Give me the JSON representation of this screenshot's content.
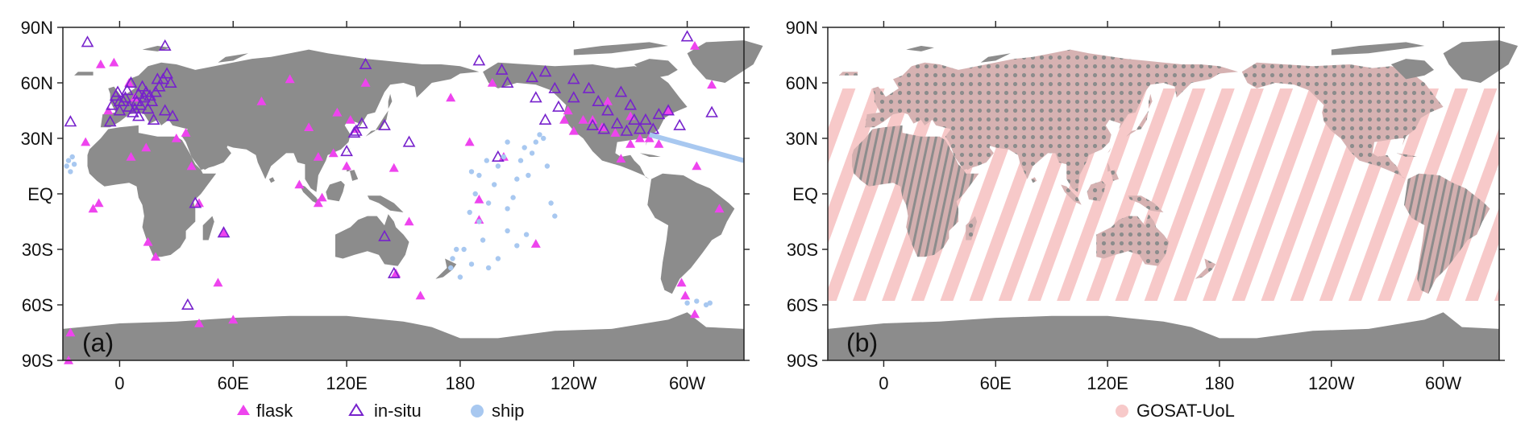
{
  "colors": {
    "land": "#8c8c8c",
    "ocean": "#ffffff",
    "flask": "#ee44ee",
    "insitu": "#7722cc",
    "ship": "#a8c8f0",
    "gosat": "#f7c9c9"
  },
  "axes": {
    "lat_ticks": [
      "90N",
      "60N",
      "30N",
      "EQ",
      "30S",
      "60S",
      "90S"
    ],
    "lon_ticks": [
      "0",
      "60E",
      "120E",
      "180",
      "120W",
      "60W"
    ]
  },
  "panels": [
    {
      "label": "(a)",
      "legend": [
        "flask",
        "in-situ",
        "ship"
      ]
    },
    {
      "label": "(b)",
      "legend": [
        "GOSAT-UoL"
      ]
    }
  ],
  "chart_data": {
    "type": "scatter",
    "lon_range": [
      -30,
      330
    ],
    "lat_range": [
      -90,
      90
    ],
    "series": [
      {
        "name": "flask",
        "marker": "filled-triangle",
        "points": [
          [
            -26,
            -75
          ],
          [
            -27,
            -90
          ],
          [
            -10,
            70
          ],
          [
            -3,
            71
          ],
          [
            -6,
            45
          ],
          [
            5,
            60
          ],
          [
            8,
            52
          ],
          [
            -18,
            28
          ],
          [
            -11,
            -5
          ],
          [
            6,
            20
          ],
          [
            14,
            25
          ],
          [
            -14,
            -8
          ],
          [
            15,
            -26
          ],
          [
            19,
            -34
          ],
          [
            30,
            30
          ],
          [
            35,
            33
          ],
          [
            38,
            15
          ],
          [
            42,
            -5
          ],
          [
            55,
            -21
          ],
          [
            52,
            -48
          ],
          [
            42,
            -70
          ],
          [
            60,
            -68
          ],
          [
            75,
            50
          ],
          [
            90,
            62
          ],
          [
            100,
            36
          ],
          [
            95,
            5
          ],
          [
            105,
            -5
          ],
          [
            107,
            -2
          ],
          [
            105,
            20
          ],
          [
            113,
            22
          ],
          [
            115,
            44
          ],
          [
            120,
            15
          ],
          [
            122,
            40
          ],
          [
            125,
            35
          ],
          [
            130,
            60
          ],
          [
            145,
            14
          ],
          [
            146,
            -43
          ],
          [
            153,
            -15
          ],
          [
            159,
            -55
          ],
          [
            175,
            52
          ],
          [
            185,
            28
          ],
          [
            190,
            -3
          ],
          [
            197,
            60
          ],
          [
            190,
            -14
          ],
          [
            203,
            20
          ],
          [
            220,
            -27
          ],
          [
            235,
            40
          ],
          [
            237,
            45
          ],
          [
            240,
            34
          ],
          [
            245,
            40
          ],
          [
            250,
            40
          ],
          [
            255,
            36
          ],
          [
            258,
            50
          ],
          [
            262,
            33
          ],
          [
            265,
            19
          ],
          [
            270,
            42
          ],
          [
            270,
            27
          ],
          [
            275,
            30
          ],
          [
            280,
            30
          ],
          [
            285,
            27
          ],
          [
            290,
            45
          ],
          [
            297,
            -48
          ],
          [
            299,
            -55
          ],
          [
            304,
            -65
          ],
          [
            305,
            15
          ],
          [
            317,
            -8
          ],
          [
            304,
            80
          ],
          [
            313,
            59
          ]
        ]
      },
      {
        "name": "in-situ",
        "marker": "open-triangle",
        "points": [
          [
            -26,
            39
          ],
          [
            -17,
            82
          ],
          [
            -2,
            53
          ],
          [
            -5,
            39
          ],
          [
            -4,
            48
          ],
          [
            0,
            45
          ],
          [
            2,
            50
          ],
          [
            3,
            52
          ],
          [
            5,
            47
          ],
          [
            7,
            44
          ],
          [
            9,
            50
          ],
          [
            11,
            48
          ],
          [
            13,
            52
          ],
          [
            15,
            46
          ],
          [
            17,
            50
          ],
          [
            19,
            55
          ],
          [
            21,
            58
          ],
          [
            23,
            62
          ],
          [
            25,
            65
          ],
          [
            27,
            60
          ],
          [
            28,
            42
          ],
          [
            -1,
            55
          ],
          [
            0,
            50
          ],
          [
            4,
            56
          ],
          [
            6,
            60
          ],
          [
            10,
            54
          ],
          [
            12,
            58
          ],
          [
            14,
            55
          ],
          [
            16,
            53
          ],
          [
            8,
            46
          ],
          [
            10,
            42
          ],
          [
            18,
            40
          ],
          [
            20,
            62
          ],
          [
            24,
            45
          ],
          [
            24,
            80
          ],
          [
            36,
            -60
          ],
          [
            55,
            -21
          ],
          [
            40,
            -5
          ],
          [
            125,
            34
          ],
          [
            124,
            33
          ],
          [
            128,
            38
          ],
          [
            140,
            37
          ],
          [
            145,
            -43
          ],
          [
            140,
            -23
          ],
          [
            130,
            70
          ],
          [
            120,
            23
          ],
          [
            153,
            28
          ],
          [
            190,
            72
          ],
          [
            200,
            20
          ],
          [
            205,
            60
          ],
          [
            202,
            67
          ],
          [
            218,
            63
          ],
          [
            225,
            66
          ],
          [
            220,
            52
          ],
          [
            225,
            40
          ],
          [
            230,
            57
          ],
          [
            232,
            47
          ],
          [
            240,
            52
          ],
          [
            240,
            62
          ],
          [
            248,
            57
          ],
          [
            250,
            37
          ],
          [
            253,
            50
          ],
          [
            256,
            35
          ],
          [
            258,
            45
          ],
          [
            263,
            38
          ],
          [
            265,
            55
          ],
          [
            268,
            34
          ],
          [
            270,
            48
          ],
          [
            272,
            40
          ],
          [
            275,
            35
          ],
          [
            278,
            40
          ],
          [
            282,
            35
          ],
          [
            285,
            43
          ],
          [
            290,
            45
          ],
          [
            296,
            37
          ],
          [
            300,
            85
          ],
          [
            313,
            44
          ]
        ]
      },
      {
        "name": "ship",
        "marker": "dot",
        "points": [
          [
            175,
            -40
          ],
          [
            182,
            -30
          ],
          [
            185,
            -10
          ],
          [
            188,
            0
          ],
          [
            190,
            -15
          ],
          [
            192,
            -25
          ],
          [
            195,
            -5
          ],
          [
            198,
            5
          ],
          [
            200,
            15
          ],
          [
            203,
            20
          ],
          [
            205,
            -8
          ],
          [
            208,
            -2
          ],
          [
            210,
            8
          ],
          [
            212,
            18
          ],
          [
            214,
            25
          ],
          [
            216,
            10
          ],
          [
            218,
            22
          ],
          [
            220,
            28
          ],
          [
            222,
            32
          ],
          [
            224,
            30
          ],
          [
            226,
            15
          ],
          [
            228,
            -5
          ],
          [
            230,
            -12
          ],
          [
            210,
            -28
          ],
          [
            205,
            -20
          ],
          [
            195,
            -40
          ],
          [
            180,
            -45
          ],
          [
            186,
            -38
          ],
          [
            176,
            -35
          ],
          [
            178,
            -30
          ],
          [
            200,
            -35
          ],
          [
            215,
            -22
          ],
          [
            190,
            10
          ],
          [
            186,
            12
          ],
          [
            194,
            18
          ],
          [
            205,
            28
          ],
          [
            300,
            -59
          ],
          [
            305,
            -58
          ],
          [
            310,
            -60
          ],
          [
            312,
            -59
          ],
          [
            -28,
            15
          ],
          [
            -27,
            18
          ],
          [
            -26,
            12
          ],
          [
            -25,
            20
          ],
          [
            -24,
            16
          ]
        ]
      },
      {
        "name": "GOSAT-UoL",
        "marker": "dot",
        "coverage": "ocean and land soundings between 56S and 56N"
      }
    ]
  }
}
